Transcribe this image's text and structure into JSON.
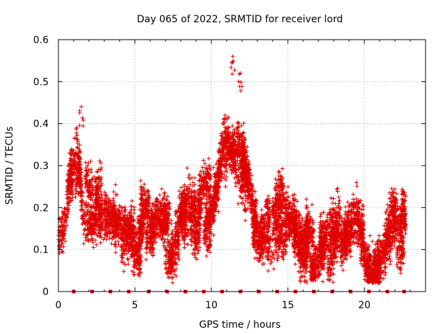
{
  "chart_data": {
    "type": "scatter",
    "title": "Day 065 of 2022, SRMTID for receiver lord",
    "xlabel": "GPS time / hours",
    "ylabel": "SRMTID / TECUs",
    "xlim": [
      0,
      24
    ],
    "ylim": [
      0,
      0.6
    ],
    "xticks": [
      0,
      5,
      10,
      15,
      20
    ],
    "xtick_labels": [
      "0",
      "5",
      "10",
      "15",
      "20"
    ],
    "yticks": [
      0,
      0.1,
      0.2,
      0.3,
      0.4,
      0.5,
      0.6
    ],
    "ytick_labels": [
      "0",
      "0.1",
      "0.2",
      "0.3",
      "0.4",
      "0.5",
      "0.6"
    ],
    "grid": true,
    "marker": "plus",
    "color": "#e00000",
    "marker_color": "#cc0000",
    "approx_points": 2400,
    "trend_profile": [
      {
        "x": 0.0,
        "y": 0.15
      },
      {
        "x": 0.5,
        "y": 0.19
      },
      {
        "x": 0.8,
        "y": 0.26
      },
      {
        "x": 1.1,
        "y": 0.3
      },
      {
        "x": 1.4,
        "y": 0.32
      },
      {
        "x": 1.6,
        "y": 0.2
      },
      {
        "x": 2.0,
        "y": 0.17
      },
      {
        "x": 2.5,
        "y": 0.17
      },
      {
        "x": 3.0,
        "y": 0.18
      },
      {
        "x": 3.5,
        "y": 0.2
      },
      {
        "x": 4.0,
        "y": 0.15
      },
      {
        "x": 5.0,
        "y": 0.15
      },
      {
        "x": 6.0,
        "y": 0.14
      },
      {
        "x": 6.5,
        "y": 0.15
      },
      {
        "x": 7.0,
        "y": 0.12
      },
      {
        "x": 7.5,
        "y": 0.14
      },
      {
        "x": 8.0,
        "y": 0.18
      },
      {
        "x": 8.5,
        "y": 0.2
      },
      {
        "x": 9.0,
        "y": 0.18
      },
      {
        "x": 9.5,
        "y": 0.2
      },
      {
        "x": 10.0,
        "y": 0.19
      },
      {
        "x": 10.5,
        "y": 0.26
      },
      {
        "x": 11.0,
        "y": 0.32
      },
      {
        "x": 11.5,
        "y": 0.36
      },
      {
        "x": 12.0,
        "y": 0.33
      },
      {
        "x": 12.4,
        "y": 0.26
      },
      {
        "x": 12.7,
        "y": 0.17
      },
      {
        "x": 13.0,
        "y": 0.14
      },
      {
        "x": 13.5,
        "y": 0.15
      },
      {
        "x": 14.0,
        "y": 0.14
      },
      {
        "x": 14.5,
        "y": 0.17
      },
      {
        "x": 15.0,
        "y": 0.17
      },
      {
        "x": 15.5,
        "y": 0.15
      },
      {
        "x": 16.0,
        "y": 0.13
      },
      {
        "x": 16.5,
        "y": 0.12
      },
      {
        "x": 17.0,
        "y": 0.12
      },
      {
        "x": 17.5,
        "y": 0.13
      },
      {
        "x": 18.0,
        "y": 0.13
      },
      {
        "x": 18.5,
        "y": 0.11
      },
      {
        "x": 19.0,
        "y": 0.14
      },
      {
        "x": 19.5,
        "y": 0.15
      },
      {
        "x": 20.0,
        "y": 0.11
      },
      {
        "x": 20.5,
        "y": 0.08
      },
      {
        "x": 21.0,
        "y": 0.1
      },
      {
        "x": 21.5,
        "y": 0.17
      },
      {
        "x": 22.0,
        "y": 0.17
      },
      {
        "x": 22.7,
        "y": 0.14
      }
    ],
    "peaks": [
      {
        "x": 1.5,
        "y": 0.44
      },
      {
        "x": 11.4,
        "y": 0.56
      },
      {
        "x": 11.9,
        "y": 0.52
      },
      {
        "x": 1.2,
        "y": 0.39
      },
      {
        "x": 10.9,
        "y": 0.42
      }
    ],
    "data_end_x": 22.7,
    "baseline_markers_x": [
      1.0,
      2.2,
      3.4,
      4.6,
      5.9,
      7.1,
      8.3,
      9.5,
      10.7,
      11.9,
      13.1,
      14.3,
      15.5,
      16.7,
      17.9,
      19.1,
      20.3,
      21.5,
      22.6
    ]
  }
}
